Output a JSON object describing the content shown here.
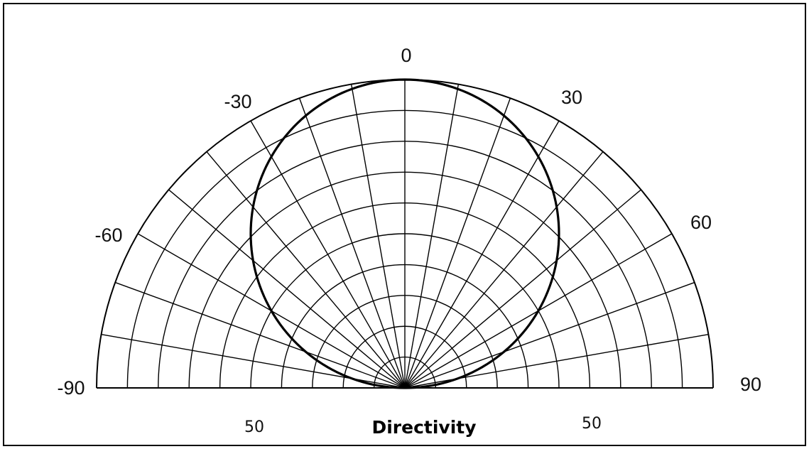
{
  "chart_data": {
    "type": "polar-line",
    "title": "Directivity",
    "angle_range_deg": [
      -90,
      90
    ],
    "angle_tick_labels": [
      "-90",
      "-60",
      "-30",
      "0",
      "30",
      "60",
      "90"
    ],
    "angle_ticks_deg": [
      -90,
      -60,
      -30,
      0,
      30,
      60,
      90
    ],
    "radial_max": 1.0,
    "radial_rings": 10,
    "radial_spokes_step_deg": 10,
    "ring_labels": [
      "50",
      "50"
    ],
    "pattern": "cos",
    "series": [
      {
        "values_theta_deg": [
          -90,
          -80,
          -70,
          -60,
          -50,
          -40,
          -30,
          -20,
          -10,
          0,
          10,
          20,
          30,
          40,
          50,
          60,
          70,
          80,
          90
        ],
        "values_r": [
          0.0,
          0.174,
          0.342,
          0.5,
          0.643,
          0.766,
          0.866,
          0.94,
          0.985,
          1.0,
          0.985,
          0.94,
          0.866,
          0.766,
          0.643,
          0.5,
          0.342,
          0.174,
          0.0
        ]
      }
    ],
    "grid": true,
    "colors": {
      "line": "#000000",
      "grid": "#000000",
      "background": "#ffffff"
    }
  }
}
